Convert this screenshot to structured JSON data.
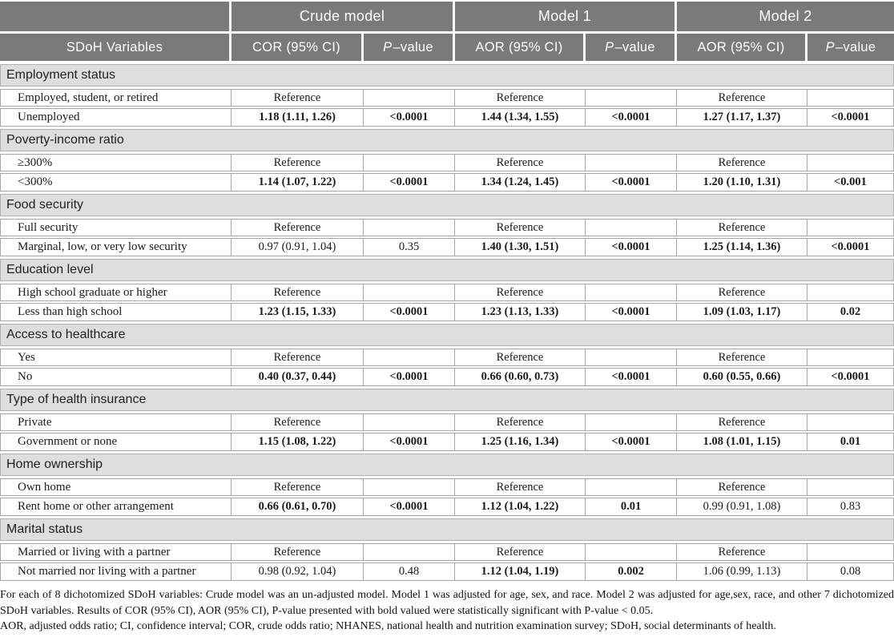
{
  "table": {
    "corner_label": "",
    "model_headers": [
      "Crude model",
      "Model 1",
      "Model 2"
    ],
    "col_headers": {
      "variables": "SDoH Variables",
      "crude_or": "COR (95% CI)",
      "adj_or": "AOR (95% CI)",
      "p_italic": "P",
      "p_rest": "–value"
    },
    "sections": [
      {
        "title": "Employment status",
        "rows": [
          {
            "label": "Employed, student, or retired",
            "cells": [
              "Reference",
              "",
              "Reference",
              "",
              "Reference",
              ""
            ],
            "bold": [
              false,
              false,
              false,
              false,
              false,
              false
            ]
          },
          {
            "label": "Unemployed",
            "cells": [
              "1.18 (1.11, 1.26)",
              "<0.0001",
              "1.44 (1.34, 1.55)",
              "<0.0001",
              "1.27 (1.17, 1.37)",
              "<0.0001"
            ],
            "bold": [
              true,
              true,
              true,
              true,
              true,
              true
            ]
          }
        ]
      },
      {
        "title": "Poverty-income ratio",
        "rows": [
          {
            "label": "≥300%",
            "cells": [
              "Reference",
              "",
              "Reference",
              "",
              "Reference",
              ""
            ],
            "bold": [
              false,
              false,
              false,
              false,
              false,
              false
            ]
          },
          {
            "label": "<300%",
            "cells": [
              "1.14 (1.07, 1.22)",
              "<0.0001",
              "1.34 (1.24, 1.45)",
              "<0.0001",
              "1.20 (1.10, 1.31)",
              "<0.001"
            ],
            "bold": [
              true,
              true,
              true,
              true,
              true,
              true
            ]
          }
        ]
      },
      {
        "title": "Food security",
        "rows": [
          {
            "label": "Full security",
            "cells": [
              "Reference",
              "",
              "Reference",
              "",
              "Reference",
              ""
            ],
            "bold": [
              false,
              false,
              false,
              false,
              false,
              false
            ]
          },
          {
            "label": "Marginal, low, or very low security",
            "cells": [
              "0.97 (0.91, 1.04)",
              "0.35",
              "1.40 (1.30, 1.51)",
              "<0.0001",
              "1.25 (1.14, 1.36)",
              "<0.0001"
            ],
            "bold": [
              false,
              false,
              true,
              true,
              true,
              true
            ]
          }
        ]
      },
      {
        "title": "Education level",
        "rows": [
          {
            "label": "High school graduate or higher",
            "cells": [
              "Reference",
              "",
              "Reference",
              "",
              "Reference",
              ""
            ],
            "bold": [
              false,
              false,
              false,
              false,
              false,
              false
            ]
          },
          {
            "label": "Less than high school",
            "cells": [
              "1.23 (1.15, 1.33)",
              "<0.0001",
              "1.23 (1.13, 1.33)",
              "<0.0001",
              "1.09 (1.03, 1.17)",
              "0.02"
            ],
            "bold": [
              true,
              true,
              true,
              true,
              true,
              true
            ]
          }
        ]
      },
      {
        "title": "Access to healthcare",
        "rows": [
          {
            "label": "Yes",
            "cells": [
              "Reference",
              "",
              "Reference",
              "",
              "Reference",
              ""
            ],
            "bold": [
              false,
              false,
              false,
              false,
              false,
              false
            ]
          },
          {
            "label": "No",
            "cells": [
              "0.40 (0.37, 0.44)",
              "<0.0001",
              "0.66 (0.60, 0.73)",
              "<0.0001",
              "0.60 (0.55, 0.66)",
              "<0.0001"
            ],
            "bold": [
              true,
              true,
              true,
              true,
              true,
              true
            ]
          }
        ]
      },
      {
        "title": "Type of health insurance",
        "rows": [
          {
            "label": "Private",
            "cells": [
              "Reference",
              "",
              "Reference",
              "",
              "Reference",
              ""
            ],
            "bold": [
              false,
              false,
              false,
              false,
              false,
              false
            ]
          },
          {
            "label": "Government or none",
            "cells": [
              "1.15 (1.08, 1.22)",
              "<0.0001",
              "1.25 (1.16, 1.34)",
              "<0.0001",
              "1.08 (1.01, 1.15)",
              "0.01"
            ],
            "bold": [
              true,
              true,
              true,
              true,
              true,
              true
            ]
          }
        ]
      },
      {
        "title": "Home ownership",
        "rows": [
          {
            "label": "Own home",
            "cells": [
              "Reference",
              "",
              "Reference",
              "",
              "Reference",
              ""
            ],
            "bold": [
              false,
              false,
              false,
              false,
              false,
              false
            ]
          },
          {
            "label": "Rent home or other arrangement",
            "cells": [
              "0.66 (0.61, 0.70)",
              "<0.0001",
              "1.12 (1.04, 1.22)",
              "0.01",
              "0.99 (0.91, 1.08)",
              "0.83"
            ],
            "bold": [
              true,
              true,
              true,
              true,
              false,
              false
            ]
          }
        ]
      },
      {
        "title": "Marital status",
        "rows": [
          {
            "label": "Married or living with a partner",
            "cells": [
              "Reference",
              "",
              "Reference",
              "",
              "Reference",
              ""
            ],
            "bold": [
              false,
              false,
              false,
              false,
              false,
              false
            ]
          },
          {
            "label": "Not married nor living with a partner",
            "cells": [
              "0.98 (0.92, 1.04)",
              "0.48",
              "1.12 (1.04, 1.19)",
              "0.002",
              "1.06 (0.99, 1.13)",
              "0.08"
            ],
            "bold": [
              false,
              false,
              true,
              true,
              false,
              false
            ]
          }
        ]
      }
    ]
  },
  "footnotes": [
    "For each of 8 dichotomized SDoH variables: Crude model was an un-adjusted model. Model 1 was adjusted for age, sex, and race. Model 2 was adjusted for age,sex, race, and other 7 dichotomized SDoH variables. Results of COR (95% CI), AOR (95% CI), P-value presented with bold valued were statistically significant with P-value < 0.05.",
    "AOR, adjusted odds ratio; CI, confidence interval; COR, crude odds ratio; NHANES, national health and nutrition examination survey; SDoH, social determinants of health."
  ],
  "colors": {
    "header_bg": "#7a7a7a",
    "section_bg": "#dedede",
    "border": "#a6a6a6",
    "header_text": "#ffffff",
    "body_text": "#1a1a1a"
  }
}
